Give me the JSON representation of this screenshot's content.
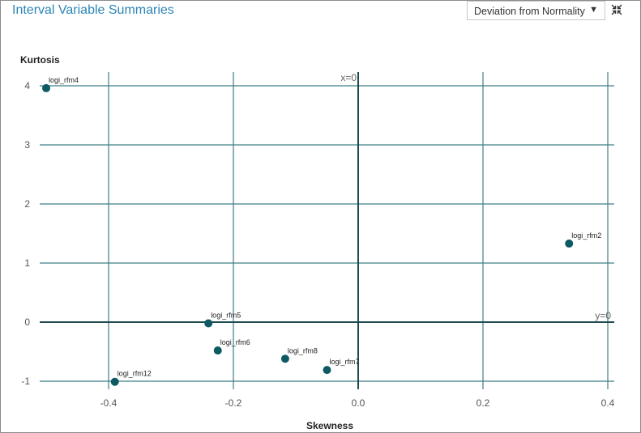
{
  "header": {
    "title": "Interval Variable Summaries",
    "dropdown_value": "Deviation from Normality",
    "dropdown_arrow_icon": "triangle-down-icon",
    "collapse_icon": "collapse-arrows-icon"
  },
  "colors": {
    "title": "#2a86b8",
    "point": "#0d5a63",
    "grid": "#3f7f87",
    "axis": "#1f4a4f"
  },
  "chart_data": {
    "type": "scatter",
    "xlabel": "Skewness",
    "ylabel": "Kurtosis",
    "xlim": [
      -0.5,
      0.41
    ],
    "ylim": [
      -1.15,
      4.25
    ],
    "x_ticks": [
      -0.4,
      -0.2,
      0.0,
      0.2,
      0.4
    ],
    "x_tick_labels": [
      "-0.4",
      "-0.2",
      "0.0",
      "0.2",
      "0.4"
    ],
    "y_ticks": [
      -1,
      0,
      1,
      2,
      3,
      4
    ],
    "y_tick_labels": [
      "-1",
      "0",
      "1",
      "2",
      "3",
      "4"
    ],
    "grid": true,
    "reference_lines": [
      {
        "axis": "x",
        "value": 0,
        "label": "x=0"
      },
      {
        "axis": "y",
        "value": 0,
        "label": "y=0"
      }
    ],
    "points": [
      {
        "name": "logi_rfm4",
        "x": -0.5,
        "y": 3.96
      },
      {
        "name": "logi_rfm2",
        "x": 0.338,
        "y": 1.33
      },
      {
        "name": "logi_rfm5",
        "x": -0.24,
        "y": -0.02
      },
      {
        "name": "logi_rfm6",
        "x": -0.225,
        "y": -0.48
      },
      {
        "name": "logi_rfm8",
        "x": -0.117,
        "y": -0.62
      },
      {
        "name": "logi_rfm7",
        "x": -0.05,
        "y": -0.81
      },
      {
        "name": "logi_rfm12",
        "x": -0.39,
        "y": -1.01
      }
    ]
  }
}
